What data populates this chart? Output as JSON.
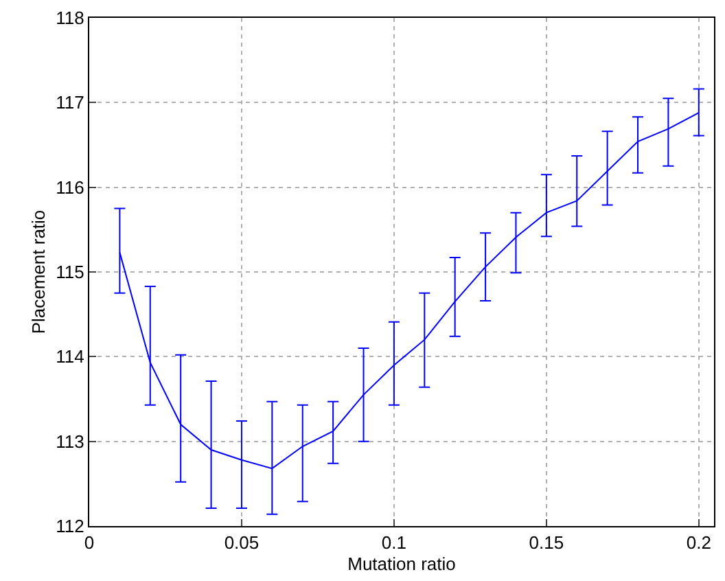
{
  "chart_data": {
    "type": "line",
    "xlabel": "Mutation ratio",
    "ylabel": "Placement ratio",
    "x": [
      0.01,
      0.02,
      0.03,
      0.04,
      0.05,
      0.06,
      0.07,
      0.08,
      0.09,
      0.1,
      0.11,
      0.12,
      0.13,
      0.14,
      0.15,
      0.16,
      0.17,
      0.18,
      0.19,
      0.2
    ],
    "series": [
      {
        "color": "#0000ff",
        "values": [
          115.23,
          113.93,
          113.2,
          112.9,
          112.78,
          112.68,
          112.94,
          113.12,
          113.55,
          113.9,
          114.2,
          114.65,
          115.06,
          115.41,
          115.7,
          115.84,
          116.19,
          116.54,
          116.69,
          116.88
        ],
        "errors": [
          [
            114.75,
            115.75
          ],
          [
            113.43,
            114.83
          ],
          [
            112.52,
            114.02
          ],
          [
            112.21,
            113.71
          ],
          [
            112.21,
            113.24
          ],
          [
            112.14,
            113.47
          ],
          [
            112.29,
            113.43
          ],
          [
            112.74,
            113.47
          ],
          [
            113.0,
            114.1
          ],
          [
            113.43,
            114.41
          ],
          [
            113.64,
            114.75
          ],
          [
            114.24,
            115.17
          ],
          [
            114.66,
            115.46
          ],
          [
            114.99,
            115.7
          ],
          [
            115.42,
            116.15
          ],
          [
            115.54,
            116.37
          ],
          [
            115.79,
            116.66
          ],
          [
            116.17,
            116.83
          ],
          [
            116.25,
            117.05
          ],
          [
            116.61,
            117.16
          ]
        ]
      }
    ],
    "xlim": [
      0,
      0.205
    ],
    "ylim": [
      112,
      118
    ],
    "xticks": [
      0,
      0.05,
      0.1,
      0.15,
      0.2
    ],
    "yticks": [
      112,
      113,
      114,
      115,
      116,
      117,
      118
    ],
    "grid": true,
    "marker": "none",
    "line_style": "solid"
  }
}
